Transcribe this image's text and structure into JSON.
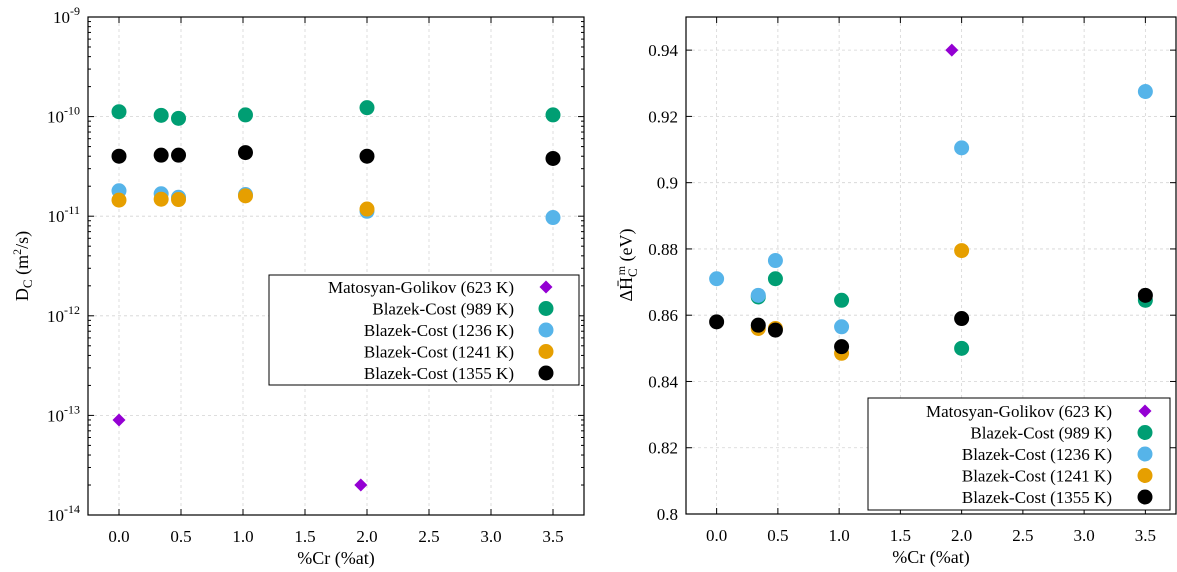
{
  "chart_data": [
    {
      "type": "scatter",
      "xlabel": "%Cr (%at)",
      "ylabel_main": "D",
      "ylabel_sub": "C",
      "ylabel_tail": " (m",
      "ylabel_sup": "2",
      "ylabel_end": "/s)",
      "yscale": "log",
      "xlim": [
        -0.25,
        3.75
      ],
      "ylim": [
        1e-14,
        1e-09
      ],
      "x_ticks": [
        0.0,
        0.5,
        1.0,
        1.5,
        2.0,
        2.5,
        3.0,
        3.5
      ],
      "x_tick_labels": [
        "0.0",
        "0.5",
        "1.0",
        "1.5",
        "2.0",
        "2.5",
        "3.0",
        "3.5"
      ],
      "y_ticks": [
        {
          "base": "10",
          "exp": "-14",
          "value": 1e-14
        },
        {
          "base": "10",
          "exp": "-13",
          "value": 1e-13
        },
        {
          "base": "10",
          "exp": "-12",
          "value": 1e-12
        },
        {
          "base": "10",
          "exp": "-11",
          "value": 1e-11
        },
        {
          "base": "10",
          "exp": "-10",
          "value": 1e-10
        },
        {
          "base": "10",
          "exp": "-9",
          "value": 1e-09
        }
      ],
      "grid": true,
      "legend_position": "center-right",
      "series": [
        {
          "name": "Matosyan-Golikov (623 K)",
          "marker": "diamond",
          "color": "#9400d3",
          "points": [
            [
              0.0,
              9e-14
            ],
            [
              1.95,
              2e-14
            ]
          ]
        },
        {
          "name": "Blazek-Cost (989 K)",
          "marker": "circle",
          "color": "#009e73",
          "points": [
            [
              0.0,
              1.12e-10
            ],
            [
              0.34,
              1.03e-10
            ],
            [
              0.48,
              9.6e-11
            ],
            [
              1.02,
              1.04e-10
            ],
            [
              2.0,
              1.23e-10
            ],
            [
              3.5,
              1.04e-10
            ]
          ]
        },
        {
          "name": "Blazek-Cost (1236 K)",
          "marker": "circle",
          "color": "#56b4e9",
          "points": [
            [
              0.0,
              1.8e-11
            ],
            [
              0.34,
              1.68e-11
            ],
            [
              0.48,
              1.55e-11
            ],
            [
              1.02,
              1.65e-11
            ],
            [
              2.0,
              1.12e-11
            ],
            [
              3.5,
              9.7e-12
            ]
          ]
        },
        {
          "name": "Blazek-Cost (1241 K)",
          "marker": "circle",
          "color": "#e69f00",
          "points": [
            [
              0.0,
              1.45e-11
            ],
            [
              0.34,
              1.48e-11
            ],
            [
              0.48,
              1.47e-11
            ],
            [
              1.02,
              1.6e-11
            ],
            [
              2.0,
              1.18e-11
            ]
          ]
        },
        {
          "name": "Blazek-Cost (1355 K)",
          "marker": "circle",
          "color": "#000000",
          "points": [
            [
              0.0,
              4e-11
            ],
            [
              0.34,
              4.1e-11
            ],
            [
              0.48,
              4.1e-11
            ],
            [
              1.02,
              4.35e-11
            ],
            [
              2.0,
              4e-11
            ],
            [
              3.5,
              3.8e-11
            ]
          ]
        }
      ]
    },
    {
      "type": "scatter",
      "xlabel": "%Cr (%at)",
      "ylabel_main": "ΔH̄",
      "ylabel_sub": "C",
      "ylabel_sup": "m",
      "ylabel_end": " (eV)",
      "yscale": "linear",
      "xlim": [
        -0.25,
        3.75
      ],
      "ylim": [
        0.8,
        0.95
      ],
      "x_ticks": [
        0.0,
        0.5,
        1.0,
        1.5,
        2.0,
        2.5,
        3.0,
        3.5
      ],
      "x_tick_labels": [
        "0.0",
        "0.5",
        "1.0",
        "1.5",
        "2.0",
        "2.5",
        "3.0",
        "3.5"
      ],
      "y_ticks": [
        0.8,
        0.82,
        0.84,
        0.86,
        0.88,
        0.9,
        0.92,
        0.94
      ],
      "y_tick_labels": [
        "0.8",
        "0.82",
        "0.84",
        "0.86",
        "0.88",
        "0.9",
        "0.92",
        "0.94"
      ],
      "grid": true,
      "legend_position": "lower-right",
      "series": [
        {
          "name": "Matosyan-Golikov (623 K)",
          "marker": "diamond",
          "color": "#9400d3",
          "points": [
            [
              1.92,
              0.94
            ]
          ]
        },
        {
          "name": "Blazek-Cost (989 K)",
          "marker": "circle",
          "color": "#009e73",
          "points": [
            [
              0.34,
              0.8655
            ],
            [
              0.48,
              0.871
            ],
            [
              1.02,
              0.8645
            ],
            [
              2.0,
              0.85
            ],
            [
              3.5,
              0.8645
            ]
          ]
        },
        {
          "name": "Blazek-Cost (1236 K)",
          "marker": "circle",
          "color": "#56b4e9",
          "points": [
            [
              0.0,
              0.871
            ],
            [
              0.34,
              0.866
            ],
            [
              0.48,
              0.8765
            ],
            [
              1.02,
              0.8565
            ],
            [
              2.0,
              0.9105
            ],
            [
              3.5,
              0.9275
            ]
          ]
        },
        {
          "name": "Blazek-Cost (1241 K)",
          "marker": "circle",
          "color": "#e69f00",
          "points": [
            [
              0.34,
              0.856
            ],
            [
              0.48,
              0.856
            ],
            [
              1.02,
              0.8485
            ],
            [
              2.0,
              0.8795
            ]
          ]
        },
        {
          "name": "Blazek-Cost (1355 K)",
          "marker": "circle",
          "color": "#000000",
          "points": [
            [
              0.0,
              0.858
            ],
            [
              0.34,
              0.857
            ],
            [
              0.48,
              0.8555
            ],
            [
              1.02,
              0.8505
            ],
            [
              2.0,
              0.859
            ],
            [
              3.5,
              0.866
            ]
          ]
        }
      ]
    }
  ]
}
